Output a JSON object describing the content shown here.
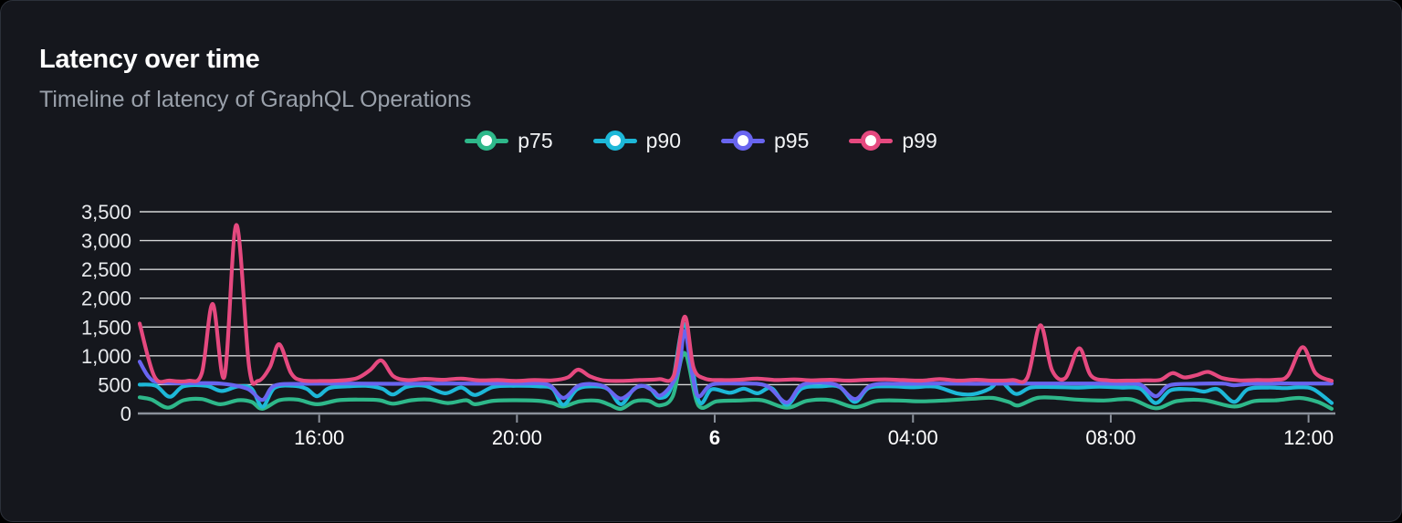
{
  "header": {
    "title": "Latency over time",
    "subtitle": "Timeline of latency of GraphQL Operations"
  },
  "legend": {
    "position": "top-center",
    "items": [
      {
        "label": "p75",
        "color": "#2eb88a"
      },
      {
        "label": "p90",
        "color": "#1db8d8"
      },
      {
        "label": "p95",
        "color": "#6965f0"
      },
      {
        "label": "p99",
        "color": "#e5497f"
      }
    ]
  },
  "colors": {
    "card_bg": "#15171d",
    "card_border": "#2c313a",
    "grid_line": "#ffffff",
    "axis_line": "#8b919b",
    "axis_text": "#e9ebee",
    "subtitle_text": "#9aa1ab"
  },
  "chart_data": {
    "type": "line",
    "title": "Latency over time",
    "subtitle": "Timeline of latency of GraphQL Operations",
    "xlabel": "",
    "ylabel": "",
    "x_unit": "hours from chart start (~12:20 day 5)",
    "x_range": [
      0,
      24.17
    ],
    "ylim": [
      0,
      3500
    ],
    "grid": "horizontal",
    "legend_position": "top-center",
    "y_ticks": [
      {
        "value": 0,
        "label": "0"
      },
      {
        "value": 500,
        "label": "500"
      },
      {
        "value": 1000,
        "label": "1,000"
      },
      {
        "value": 1500,
        "label": "1,500"
      },
      {
        "value": 2000,
        "label": "2,000"
      },
      {
        "value": 2500,
        "label": "2,500"
      },
      {
        "value": 3000,
        "label": "3,000"
      },
      {
        "value": 3500,
        "label": "3,500"
      }
    ],
    "x_ticks": [
      {
        "h": 3.64,
        "label": "16:00",
        "bold": false
      },
      {
        "h": 7.65,
        "label": "20:00",
        "bold": false
      },
      {
        "h": 11.66,
        "label": "6",
        "bold": true
      },
      {
        "h": 15.68,
        "label": "04:00",
        "bold": false
      },
      {
        "h": 19.69,
        "label": "08:00",
        "bold": false
      },
      {
        "h": 23.7,
        "label": "12:00",
        "bold": false
      }
    ],
    "series": [
      {
        "name": "p75",
        "color": "#2eb88a",
        "points": [
          [
            0,
            280
          ],
          [
            0.24,
            240
          ],
          [
            0.57,
            100
          ],
          [
            0.89,
            230
          ],
          [
            1.26,
            250
          ],
          [
            1.63,
            160
          ],
          [
            2.0,
            230
          ],
          [
            2.27,
            200
          ],
          [
            2.49,
            80
          ],
          [
            2.83,
            230
          ],
          [
            3.2,
            240
          ],
          [
            3.6,
            160
          ],
          [
            4.03,
            230
          ],
          [
            4.49,
            240
          ],
          [
            4.86,
            230
          ],
          [
            5.14,
            170
          ],
          [
            5.51,
            230
          ],
          [
            5.88,
            240
          ],
          [
            6.25,
            180
          ],
          [
            6.62,
            230
          ],
          [
            6.8,
            160
          ],
          [
            7.17,
            220
          ],
          [
            7.63,
            230
          ],
          [
            8.09,
            220
          ],
          [
            8.37,
            180
          ],
          [
            8.59,
            120
          ],
          [
            8.92,
            210
          ],
          [
            9.29,
            220
          ],
          [
            9.53,
            150
          ],
          [
            9.76,
            80
          ],
          [
            10.03,
            210
          ],
          [
            10.31,
            220
          ],
          [
            10.55,
            140
          ],
          [
            10.81,
            300
          ],
          [
            11.05,
            1050
          ],
          [
            11.33,
            140
          ],
          [
            11.7,
            210
          ],
          [
            12.16,
            225
          ],
          [
            12.62,
            230
          ],
          [
            13.12,
            100
          ],
          [
            13.54,
            220
          ],
          [
            14.01,
            230
          ],
          [
            14.5,
            110
          ],
          [
            14.93,
            215
          ],
          [
            15.39,
            225
          ],
          [
            15.85,
            210
          ],
          [
            16.41,
            230
          ],
          [
            16.96,
            260
          ],
          [
            17.3,
            270
          ],
          [
            17.62,
            200
          ],
          [
            17.82,
            140
          ],
          [
            18.2,
            270
          ],
          [
            18.6,
            270
          ],
          [
            19.0,
            240
          ],
          [
            19.55,
            225
          ],
          [
            20.1,
            245
          ],
          [
            20.6,
            90
          ],
          [
            21.03,
            215
          ],
          [
            21.58,
            230
          ],
          [
            22.19,
            120
          ],
          [
            22.6,
            215
          ],
          [
            23.06,
            230
          ],
          [
            23.52,
            270
          ],
          [
            23.89,
            200
          ],
          [
            24.17,
            80
          ]
        ]
      },
      {
        "name": "p90",
        "color": "#1db8d8",
        "points": [
          [
            0,
            500
          ],
          [
            0.33,
            480
          ],
          [
            0.61,
            290
          ],
          [
            0.89,
            470
          ],
          [
            1.35,
            480
          ],
          [
            1.66,
            390
          ],
          [
            2.0,
            470
          ],
          [
            2.27,
            430
          ],
          [
            2.49,
            115
          ],
          [
            2.73,
            440
          ],
          [
            3.1,
            480
          ],
          [
            3.38,
            430
          ],
          [
            3.6,
            300
          ],
          [
            3.84,
            440
          ],
          [
            4.21,
            470
          ],
          [
            4.58,
            480
          ],
          [
            4.91,
            430
          ],
          [
            5.14,
            330
          ],
          [
            5.41,
            460
          ],
          [
            5.78,
            480
          ],
          [
            6.19,
            350
          ],
          [
            6.52,
            450
          ],
          [
            6.8,
            320
          ],
          [
            7.17,
            460
          ],
          [
            7.63,
            480
          ],
          [
            8.09,
            470
          ],
          [
            8.37,
            430
          ],
          [
            8.59,
            150
          ],
          [
            8.87,
            420
          ],
          [
            9.2,
            470
          ],
          [
            9.5,
            420
          ],
          [
            9.76,
            160
          ],
          [
            10.03,
            430
          ],
          [
            10.31,
            460
          ],
          [
            10.55,
            270
          ],
          [
            10.79,
            480
          ],
          [
            11.05,
            1550
          ],
          [
            11.33,
            230
          ],
          [
            11.6,
            420
          ],
          [
            11.97,
            360
          ],
          [
            12.25,
            430
          ],
          [
            12.53,
            350
          ],
          [
            12.81,
            440
          ],
          [
            13.12,
            150
          ],
          [
            13.42,
            430
          ],
          [
            13.82,
            470
          ],
          [
            14.19,
            460
          ],
          [
            14.5,
            200
          ],
          [
            14.78,
            440
          ],
          [
            15.21,
            470
          ],
          [
            15.67,
            455
          ],
          [
            16.13,
            465
          ],
          [
            16.59,
            345
          ],
          [
            16.91,
            335
          ],
          [
            17.24,
            430
          ],
          [
            17.45,
            560
          ],
          [
            17.76,
            340
          ],
          [
            18.07,
            450
          ],
          [
            18.53,
            460
          ],
          [
            19.0,
            450
          ],
          [
            19.46,
            465
          ],
          [
            19.92,
            450
          ],
          [
            20.29,
            430
          ],
          [
            20.6,
            180
          ],
          [
            20.9,
            400
          ],
          [
            21.31,
            420
          ],
          [
            21.58,
            380
          ],
          [
            21.86,
            420
          ],
          [
            22.19,
            200
          ],
          [
            22.47,
            420
          ],
          [
            22.88,
            450
          ],
          [
            23.24,
            440
          ],
          [
            23.52,
            455
          ],
          [
            23.8,
            420
          ],
          [
            24.17,
            180
          ]
        ]
      },
      {
        "name": "p95",
        "color": "#6965f0",
        "points": [
          [
            0,
            900
          ],
          [
            0.18,
            640
          ],
          [
            0.37,
            545
          ],
          [
            0.89,
            525
          ],
          [
            1.63,
            520
          ],
          [
            2.18,
            430
          ],
          [
            2.49,
            235
          ],
          [
            2.73,
            480
          ],
          [
            3.29,
            515
          ],
          [
            4.21,
            520
          ],
          [
            5.14,
            515
          ],
          [
            6.06,
            520
          ],
          [
            6.98,
            518
          ],
          [
            7.72,
            520
          ],
          [
            8.28,
            500
          ],
          [
            8.59,
            270
          ],
          [
            8.92,
            490
          ],
          [
            9.39,
            480
          ],
          [
            9.76,
            260
          ],
          [
            10.13,
            480
          ],
          [
            10.4,
            400
          ],
          [
            10.55,
            310
          ],
          [
            10.77,
            480
          ],
          [
            10.94,
            800
          ],
          [
            11.05,
            1430
          ],
          [
            11.2,
            700
          ],
          [
            11.33,
            300
          ],
          [
            11.6,
            500
          ],
          [
            12.16,
            520
          ],
          [
            12.71,
            480
          ],
          [
            13.12,
            190
          ],
          [
            13.45,
            500
          ],
          [
            14.1,
            505
          ],
          [
            14.5,
            250
          ],
          [
            14.84,
            490
          ],
          [
            15.48,
            515
          ],
          [
            16.22,
            520
          ],
          [
            16.96,
            515
          ],
          [
            17.7,
            520
          ],
          [
            18.44,
            520
          ],
          [
            19.18,
            520
          ],
          [
            19.92,
            515
          ],
          [
            20.29,
            500
          ],
          [
            20.6,
            300
          ],
          [
            20.88,
            490
          ],
          [
            21.4,
            515
          ],
          [
            21.95,
            520
          ],
          [
            22.19,
            490
          ],
          [
            22.51,
            515
          ],
          [
            23.06,
            520
          ],
          [
            23.61,
            520
          ],
          [
            24.17,
            520
          ]
        ]
      },
      {
        "name": "p99",
        "color": "#e5497f",
        "points": [
          [
            0,
            1560
          ],
          [
            0.3,
            640
          ],
          [
            0.61,
            570
          ],
          [
            0.98,
            565
          ],
          [
            1.26,
            700
          ],
          [
            1.48,
            1900
          ],
          [
            1.72,
            640
          ],
          [
            1.96,
            3270
          ],
          [
            2.22,
            800
          ],
          [
            2.4,
            565
          ],
          [
            2.64,
            800
          ],
          [
            2.83,
            1200
          ],
          [
            3.07,
            700
          ],
          [
            3.29,
            575
          ],
          [
            3.66,
            565
          ],
          [
            4.03,
            570
          ],
          [
            4.4,
            610
          ],
          [
            4.67,
            750
          ],
          [
            4.9,
            920
          ],
          [
            5.14,
            650
          ],
          [
            5.41,
            580
          ],
          [
            5.78,
            600
          ],
          [
            6.15,
            585
          ],
          [
            6.52,
            605
          ],
          [
            6.89,
            575
          ],
          [
            7.26,
            580
          ],
          [
            7.63,
            565
          ],
          [
            8.0,
            580
          ],
          [
            8.37,
            575
          ],
          [
            8.68,
            625
          ],
          [
            8.89,
            760
          ],
          [
            9.13,
            645
          ],
          [
            9.39,
            575
          ],
          [
            9.76,
            565
          ],
          [
            10.13,
            580
          ],
          [
            10.53,
            595
          ],
          [
            10.83,
            660
          ],
          [
            11.05,
            1680
          ],
          [
            11.23,
            800
          ],
          [
            11.46,
            605
          ],
          [
            11.79,
            580
          ],
          [
            12.16,
            585
          ],
          [
            12.53,
            605
          ],
          [
            12.9,
            580
          ],
          [
            13.27,
            590
          ],
          [
            13.64,
            575
          ],
          [
            14.01,
            585
          ],
          [
            14.38,
            570
          ],
          [
            14.75,
            585
          ],
          [
            15.11,
            590
          ],
          [
            15.48,
            580
          ],
          [
            15.85,
            570
          ],
          [
            16.22,
            595
          ],
          [
            16.59,
            570
          ],
          [
            16.96,
            585
          ],
          [
            17.33,
            570
          ],
          [
            17.7,
            580
          ],
          [
            18.0,
            625
          ],
          [
            18.26,
            1530
          ],
          [
            18.5,
            750
          ],
          [
            18.77,
            615
          ],
          [
            19.05,
            1130
          ],
          [
            19.29,
            655
          ],
          [
            19.64,
            575
          ],
          [
            20.01,
            570
          ],
          [
            20.38,
            575
          ],
          [
            20.7,
            585
          ],
          [
            20.94,
            700
          ],
          [
            21.18,
            625
          ],
          [
            21.43,
            665
          ],
          [
            21.67,
            720
          ],
          [
            21.95,
            615
          ],
          [
            22.28,
            575
          ],
          [
            22.65,
            580
          ],
          [
            23.02,
            585
          ],
          [
            23.28,
            655
          ],
          [
            23.58,
            1150
          ],
          [
            23.84,
            700
          ],
          [
            24.17,
            565
          ]
        ]
      }
    ]
  }
}
